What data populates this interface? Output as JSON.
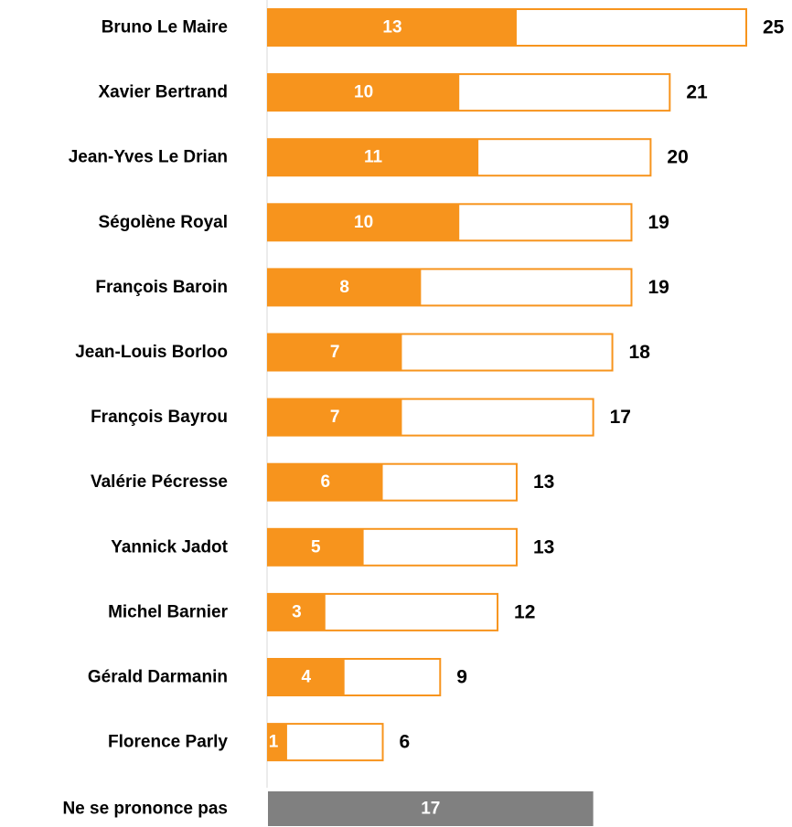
{
  "chart_data": {
    "type": "bar",
    "orientation": "horizontal",
    "categories": [
      "Bruno Le Maire",
      "Xavier Bertrand",
      "Jean-Yves Le Drian",
      "Ségolène Royal",
      "François Baroin",
      "Jean-Louis Borloo",
      "François Bayrou",
      "Valérie Pécresse",
      "Yannick Jadot",
      "Michel Barnier",
      "Gérald Darmanin",
      "Florence Parly"
    ],
    "series": [
      {
        "values": [
          13,
          10,
          11,
          10,
          8,
          7,
          7,
          6,
          5,
          3,
          4,
          1
        ]
      },
      {
        "values": [
          25,
          21,
          20,
          19,
          19,
          18,
          17,
          13,
          13,
          12,
          9,
          6
        ]
      }
    ],
    "extra_bar": {
      "category": "Ne se prononce pas",
      "value": 17
    },
    "colors": {
      "inner": "#f7941d",
      "outline": "#f7941d",
      "extra": "#808080",
      "label": "#000000",
      "inner_label": "#ffffff"
    },
    "xlim": [
      0,
      25
    ],
    "grid": false,
    "legend": "none"
  }
}
